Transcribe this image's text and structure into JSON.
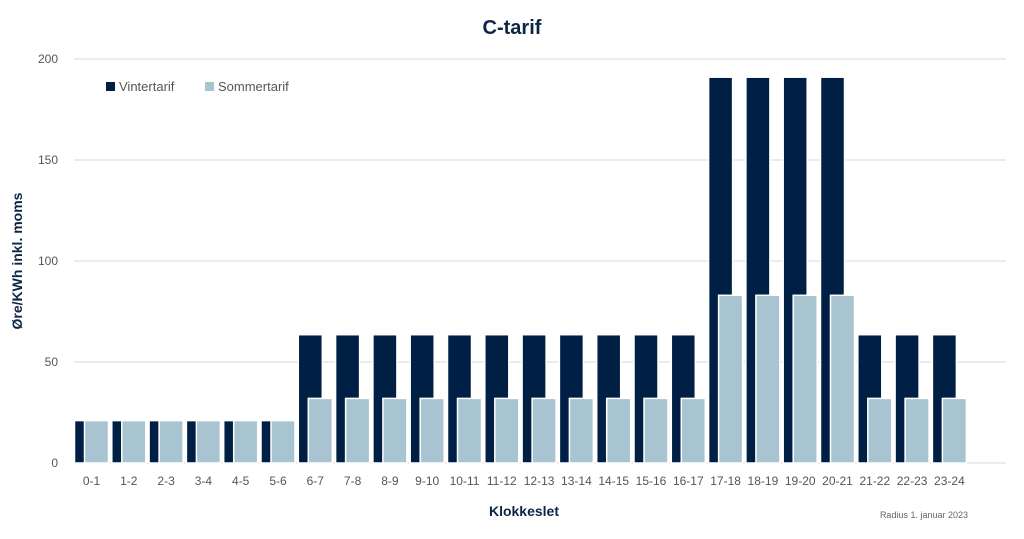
{
  "chart_data": {
    "type": "bar",
    "title": "C-tarif",
    "xlabel": "Klokkeslet",
    "ylabel": "Øre/KWh inkl. moms",
    "ylim": [
      0,
      200
    ],
    "yticks": [
      "0",
      "50",
      "100",
      "150",
      "200"
    ],
    "grid": true,
    "legend_position": "top-left",
    "categories": [
      "0-1",
      "1-2",
      "2-3",
      "3-4",
      "4-5",
      "5-6",
      "6-7",
      "7-8",
      "8-9",
      "9-10",
      "10-11",
      "11-12",
      "12-13",
      "13-14",
      "14-15",
      "15-16",
      "16-17",
      "17-18",
      "18-19",
      "19-20",
      "20-21",
      "21-22",
      "22-23",
      "23-24"
    ],
    "series": [
      {
        "name": "Vintertarif",
        "color": "#001f45",
        "values": [
          21,
          21,
          21,
          21,
          21,
          21,
          63.5,
          63.5,
          63.5,
          63.5,
          63.5,
          63.5,
          63.5,
          63.5,
          63.5,
          63.5,
          63.5,
          191,
          191,
          191,
          191,
          63.5,
          63.5,
          63.5
        ]
      },
      {
        "name": "Sommertarif",
        "color": "#a9c4d1",
        "values": [
          21,
          21,
          21,
          21,
          21,
          21,
          32,
          32,
          32,
          32,
          32,
          32,
          32,
          32,
          32,
          32,
          32,
          83,
          83,
          83,
          83,
          32,
          32,
          32
        ]
      }
    ],
    "source_note": "Radius 1. januar 2023"
  }
}
